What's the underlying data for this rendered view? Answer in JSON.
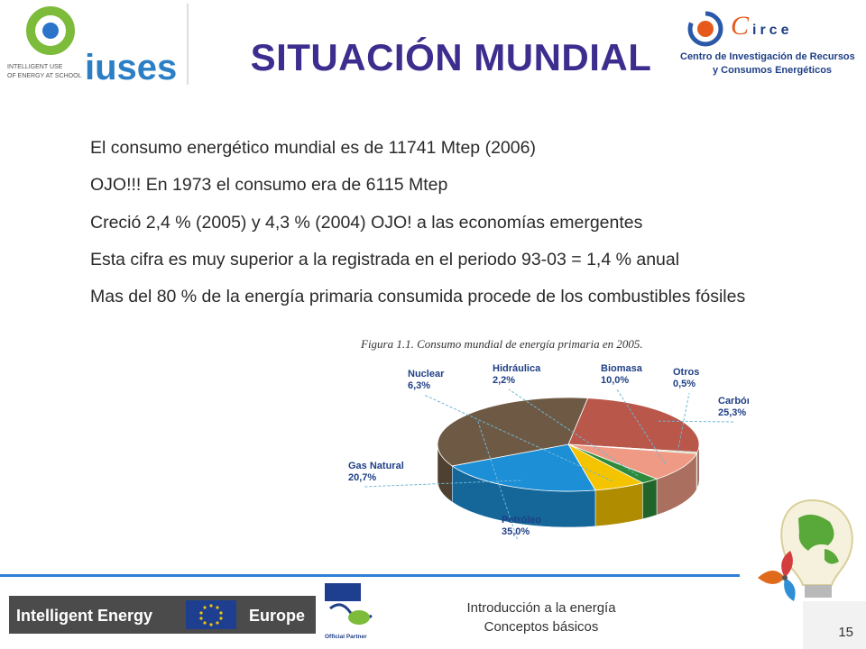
{
  "logos": {
    "iuses": {
      "caption_line1": "INTELLIGENT USE",
      "caption_line2": "OF ENERGY AT SCHOOL",
      "word": "iuses"
    },
    "circe": {
      "word": "irce",
      "line1": "Centro de Investigación de Recursos",
      "line2": "y Consumos Energéticos"
    }
  },
  "title": "SITUACIÓN MUNDIAL",
  "bullets": [
    {
      "marker": "",
      "text": "El consumo energético mundial es de 11741 Mtep (2006)"
    },
    {
      "marker": "",
      "text": "OJO!!!  En 1973 el consumo era de 6115 Mtep"
    },
    {
      "marker": "",
      "text": "Creció 2,4 % (2005) y 4,3 % (2004)  OJO! a las economías emergentes"
    },
    {
      "marker": "",
      "text": "Esta cifra es muy superior a la registrada en el periodo 93-03 = 1,4 % anual"
    },
    {
      "marker": "",
      "text": "Mas del 80 % de la energía primaria consumida procede de los combustibles fósiles"
    }
  ],
  "chart_data": {
    "type": "pie",
    "title": "Figura 1.1.  Consumo mundial de energía primaria en 2005.",
    "categories": [
      "Carbón",
      "Otros",
      "Biomasa",
      "Hidráulica",
      "Nuclear",
      "Gas Natural",
      "Petróleo"
    ],
    "values": [
      25.3,
      0.5,
      10.0,
      2.2,
      6.3,
      20.7,
      35.0
    ],
    "value_labels": [
      "25,3%",
      "0,5%",
      "10,0%",
      "2,2%",
      "6,3%",
      "20,7%",
      "35,0%"
    ],
    "colors": [
      "#b8574a",
      "#a8d08d",
      "#ee9a84",
      "#2e8b3a",
      "#f5c400",
      "#1d8fd6",
      "#6e5a44"
    ]
  },
  "footer": {
    "iee": {
      "left": "Intelligent Energy",
      "right": "Europe"
    },
    "partner_label": "Official Partner",
    "line1": "Introducción a la energía",
    "line2": "Conceptos básicos",
    "page_number": "15"
  }
}
